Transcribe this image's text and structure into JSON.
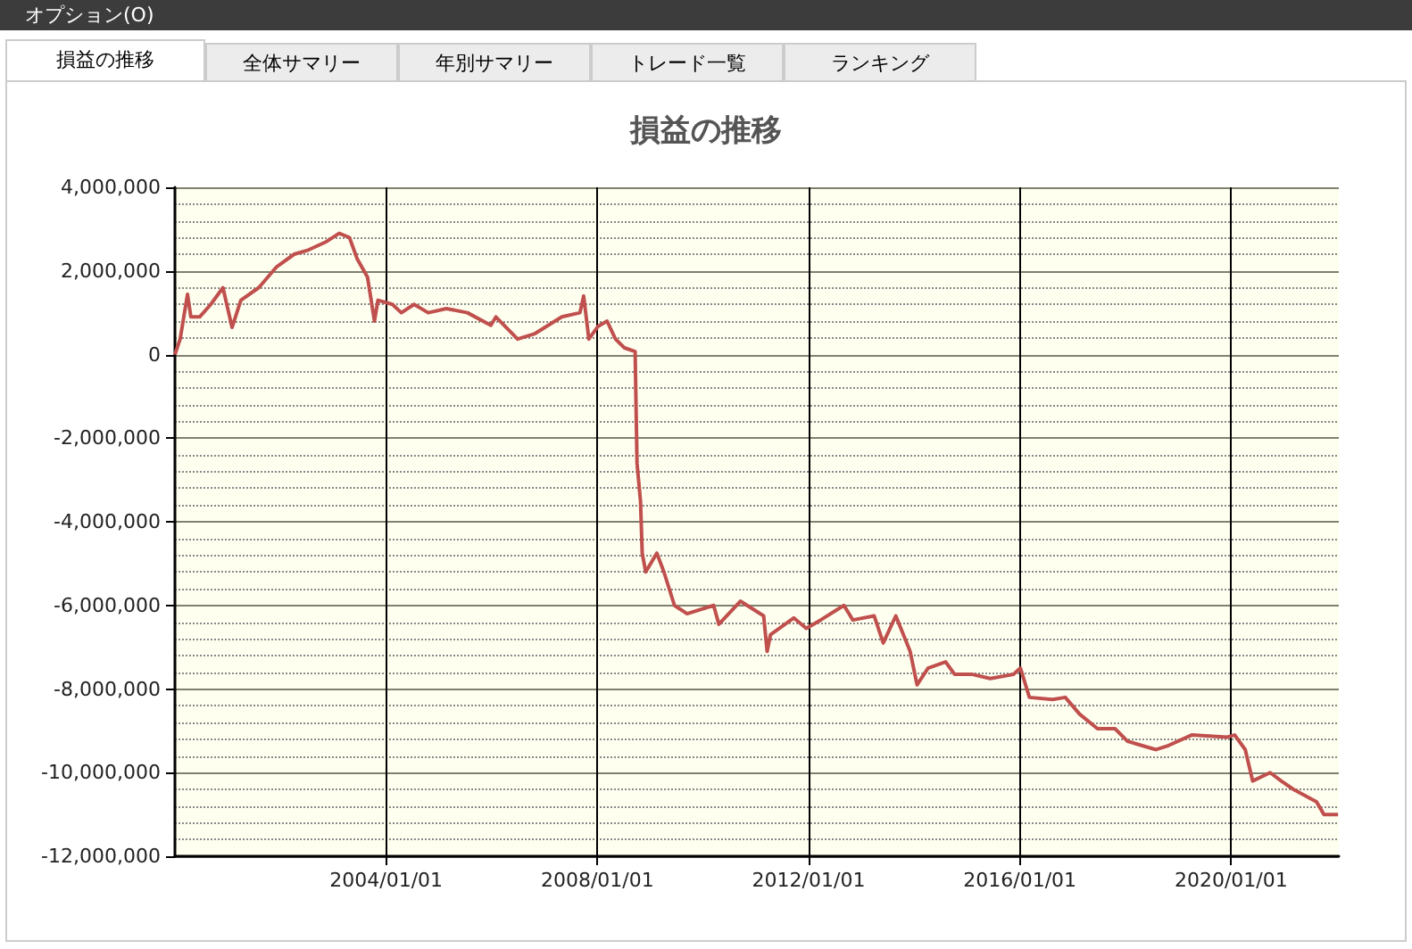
{
  "chart_data": {
    "type": "line",
    "title": "損益の推移",
    "annotations": [
      "オプション(O)",
      "損益の推移",
      "全体サマリー",
      "年別サマリー",
      "トレード一覧",
      "ランキング"
    ],
    "x": [
      "2000-01-01",
      "2000-02-06",
      "2000-03-28",
      "2000-04-20",
      "2000-06-20",
      "2000-09-05",
      "2000-11-28",
      "2001-01-30",
      "2001-04-01",
      "2001-08-03",
      "2001-12-05",
      "2002-04-05",
      "2002-07-12",
      "2002-11-13",
      "2003-02-10",
      "2003-04-22",
      "2003-06-13",
      "2003-08-25",
      "2003-10-12",
      "2003-11-05",
      "2004-02-13",
      "2004-04-15",
      "2004-07-12",
      "2004-10-18",
      "2005-02-20",
      "2005-07-16",
      "2005-12-25",
      "2006-01-29",
      "2006-06-28",
      "2006-10-26",
      "2007-04-30",
      "2007-09-02",
      "2007-09-28",
      "2007-11-03",
      "2008-01-04",
      "2008-03-08",
      "2008-05-05",
      "2008-07-06",
      "2008-09-18",
      "2008-10-01",
      "2008-10-25",
      "2008-11-06",
      "2008-11-30",
      "2009-02-15",
      "2009-04-05",
      "2009-06-17",
      "2009-09-12",
      "2010-03-15",
      "2010-04-20",
      "2010-09-16",
      "2011-02-24",
      "2011-03-20",
      "2011-04-12",
      "2011-09-20",
      "2011-12-16",
      "2012-03-24",
      "2012-09-01",
      "2012-11-02",
      "2013-03-29",
      "2013-05-31",
      "2013-08-26",
      "2013-12-03",
      "2014-01-20",
      "2014-04-06",
      "2014-08-05",
      "2014-10-07",
      "2015-02-07",
      "2015-06-10",
      "2015-11-18",
      "2016-01-05",
      "2016-03-07",
      "2016-08-15",
      "2016-11-10",
      "2017-02-17",
      "2017-06-21",
      "2017-10-20",
      "2018-01-15",
      "2018-07-31",
      "2018-10-26",
      "2019-04-03",
      "2019-12-06",
      "2020-01-26",
      "2020-04-08",
      "2020-05-29",
      "2020-09-27",
      "2020-12-13",
      "2021-03-07",
      "2021-08-14",
      "2021-10-04",
      "2022-01-10"
    ],
    "values": [
      0,
      370000,
      1440000,
      900000,
      900000,
      1200000,
      1600000,
      650000,
      1300000,
      1600000,
      2100000,
      2400000,
      2500000,
      2700000,
      2900000,
      2800000,
      2300000,
      1850000,
      800000,
      1300000,
      1200000,
      1000000,
      1200000,
      1000000,
      1100000,
      1000000,
      700000,
      900000,
      370000,
      500000,
      900000,
      1000000,
      1400000,
      370000,
      670000,
      800000,
      370000,
      160000,
      70000,
      -2600000,
      -3500000,
      -4750000,
      -5200000,
      -4750000,
      -5200000,
      -6000000,
      -6200000,
      -6000000,
      -6450000,
      -5900000,
      -6250000,
      -7100000,
      -6700000,
      -6300000,
      -6550000,
      -6350000,
      -6000000,
      -6350000,
      -6250000,
      -6900000,
      -6250000,
      -7100000,
      -7900000,
      -7500000,
      -7350000,
      -7650000,
      -7650000,
      -7750000,
      -7650000,
      -7500000,
      -8200000,
      -8250000,
      -8200000,
      -8600000,
      -8950000,
      -8950000,
      -9250000,
      -9450000,
      -9350000,
      -9100000,
      -9150000,
      -9100000,
      -9450000,
      -10200000,
      -10000000,
      -10200000,
      -10400000,
      -10700000,
      -11000000,
      -11000000
    ],
    "color": "#c0504d",
    "xlim": [
      "2000-01-01",
      "2022-01-15"
    ],
    "xticks": [
      {
        "value": "2004-01-01",
        "label": "2004/01/01"
      },
      {
        "value": "2008-01-01",
        "label": "2008/01/01"
      },
      {
        "value": "2012-01-01",
        "label": "2012/01/01"
      },
      {
        "value": "2016-01-01",
        "label": "2016/01/01"
      },
      {
        "value": "2020-01-01",
        "label": "2020/01/01"
      }
    ],
    "ylim": [
      -12000000,
      4000000
    ],
    "yticks": [
      {
        "value": -12000000,
        "label": "-12,000,000"
      },
      {
        "value": -10000000,
        "label": "-10,000,000"
      },
      {
        "value": -8000000,
        "label": "-8,000,000"
      },
      {
        "value": -6000000,
        "label": "-6,000,000"
      },
      {
        "value": -4000000,
        "label": "-4,000,000"
      },
      {
        "value": -2000000,
        "label": "-2,000,000"
      },
      0,
      {
        "value": 2000000,
        "label": "2,000,000"
      },
      {
        "value": 4000000,
        "label": "4,000,000"
      }
    ],
    "grid": true,
    "marker": "none",
    "line_style": "solid"
  }
}
